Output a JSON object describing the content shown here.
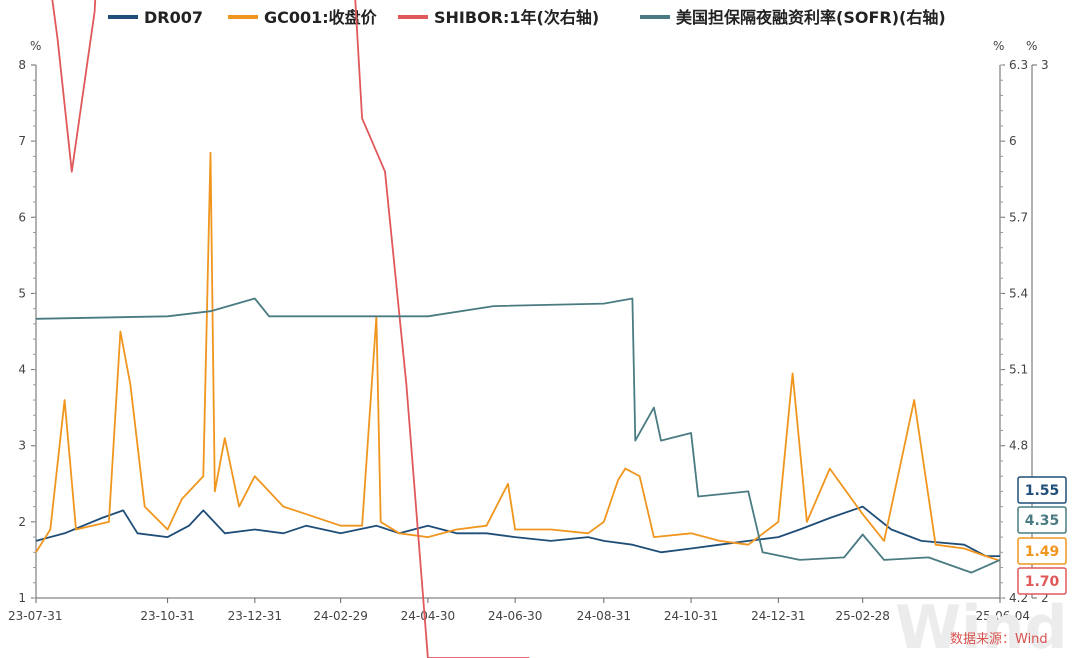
{
  "chart_data": {
    "type": "line",
    "legend": [
      {
        "name": "DR007",
        "color": "#1f4e79"
      },
      {
        "name": "GC001:收盘价",
        "color": "#f0961e"
      },
      {
        "name": "SHIBOR:1年(次右轴)",
        "color": "#e0585a"
      },
      {
        "name": "美国担保隔夜融资利率(SOFR)(右轴)",
        "color": "#4a7b82"
      }
    ],
    "x_ticks": [
      "23-07-31",
      "23-10-31",
      "23-12-31",
      "24-02-29",
      "24-04-30",
      "24-06-30",
      "24-08-31",
      "24-10-31",
      "24-12-31",
      "25-02-28",
      "25-06-04"
    ],
    "x_range": [
      "2023-07-31",
      "2025-06-04"
    ],
    "left_axis": {
      "unit": "%",
      "ylim": [
        1,
        8
      ],
      "ticks": [
        "1",
        "2",
        "3",
        "4",
        "5",
        "6",
        "7",
        "8"
      ]
    },
    "right_axis": {
      "unit": "%",
      "ylim": [
        4.2,
        6.3
      ],
      "ticks": [
        "4.2",
        "4.8",
        "5.1",
        "5.4",
        "5.7",
        "6",
        "6.3"
      ]
    },
    "right_axis2": {
      "unit": "%",
      "ylim": [
        2,
        3
      ],
      "ticks": [
        "2",
        "3"
      ]
    },
    "series": [
      {
        "name": "DR007",
        "color": "#1f4e79",
        "axis": "left",
        "points": [
          [
            "2023-07-31",
            1.75
          ],
          [
            "2023-08-20",
            1.85
          ],
          [
            "2023-09-15",
            2.05
          ],
          [
            "2023-09-30",
            2.15
          ],
          [
            "2023-10-10",
            1.85
          ],
          [
            "2023-10-31",
            1.8
          ],
          [
            "2023-11-15",
            1.95
          ],
          [
            "2023-11-25",
            2.15
          ],
          [
            "2023-12-10",
            1.85
          ],
          [
            "2023-12-31",
            1.9
          ],
          [
            "2024-01-20",
            1.85
          ],
          [
            "2024-02-05",
            1.95
          ],
          [
            "2024-02-29",
            1.85
          ],
          [
            "2024-03-25",
            1.95
          ],
          [
            "2024-04-10",
            1.85
          ],
          [
            "2024-04-30",
            1.95
          ],
          [
            "2024-05-20",
            1.85
          ],
          [
            "2024-06-10",
            1.85
          ],
          [
            "2024-06-30",
            1.8
          ],
          [
            "2024-07-25",
            1.75
          ],
          [
            "2024-08-20",
            1.8
          ],
          [
            "2024-08-31",
            1.75
          ],
          [
            "2024-09-20",
            1.7
          ],
          [
            "2024-10-10",
            1.6
          ],
          [
            "2024-10-31",
            1.65
          ],
          [
            "2024-11-20",
            1.7
          ],
          [
            "2024-12-10",
            1.75
          ],
          [
            "2024-12-31",
            1.8
          ],
          [
            "2025-01-15",
            1.9
          ],
          [
            "2025-02-05",
            2.05
          ],
          [
            "2025-02-28",
            2.2
          ],
          [
            "2025-03-20",
            1.9
          ],
          [
            "2025-04-10",
            1.75
          ],
          [
            "2025-05-10",
            1.7
          ],
          [
            "2025-05-25",
            1.55
          ],
          [
            "2025-06-04",
            1.55
          ]
        ]
      },
      {
        "name": "GC001:收盘价",
        "color": "#f0961e",
        "axis": "left",
        "points": [
          [
            "2023-07-31",
            1.6
          ],
          [
            "2023-08-10",
            1.9
          ],
          [
            "2023-08-20",
            3.6
          ],
          [
            "2023-08-28",
            1.9
          ],
          [
            "2023-09-20",
            2.0
          ],
          [
            "2023-09-28",
            4.5
          ],
          [
            "2023-10-05",
            3.8
          ],
          [
            "2023-10-15",
            2.2
          ],
          [
            "2023-10-31",
            1.9
          ],
          [
            "2023-11-10",
            2.3
          ],
          [
            "2023-11-25",
            2.6
          ],
          [
            "2023-11-30",
            6.85
          ],
          [
            "2023-12-03",
            2.4
          ],
          [
            "2023-12-10",
            3.1
          ],
          [
            "2023-12-20",
            2.2
          ],
          [
            "2023-12-31",
            2.6
          ],
          [
            "2024-01-20",
            2.2
          ],
          [
            "2024-02-05",
            2.1
          ],
          [
            "2024-02-29",
            1.95
          ],
          [
            "2024-03-15",
            1.95
          ],
          [
            "2024-03-25",
            4.7
          ],
          [
            "2024-03-28",
            2.0
          ],
          [
            "2024-04-10",
            1.85
          ],
          [
            "2024-04-30",
            1.8
          ],
          [
            "2024-05-20",
            1.9
          ],
          [
            "2024-06-10",
            1.95
          ],
          [
            "2024-06-25",
            2.5
          ],
          [
            "2024-06-30",
            1.9
          ],
          [
            "2024-07-25",
            1.9
          ],
          [
            "2024-08-20",
            1.85
          ],
          [
            "2024-08-31",
            2.0
          ],
          [
            "2024-09-10",
            2.55
          ],
          [
            "2024-09-15",
            2.7
          ],
          [
            "2024-09-25",
            2.6
          ],
          [
            "2024-10-05",
            1.8
          ],
          [
            "2024-10-31",
            1.85
          ],
          [
            "2024-11-20",
            1.75
          ],
          [
            "2024-12-10",
            1.7
          ],
          [
            "2024-12-31",
            2.0
          ],
          [
            "2025-01-10",
            3.95
          ],
          [
            "2025-01-20",
            2.0
          ],
          [
            "2025-02-05",
            2.7
          ],
          [
            "2025-02-28",
            2.1
          ],
          [
            "2025-03-15",
            1.75
          ],
          [
            "2025-04-05",
            3.6
          ],
          [
            "2025-04-20",
            1.7
          ],
          [
            "2025-05-10",
            1.65
          ],
          [
            "2025-05-25",
            1.55
          ],
          [
            "2025-06-04",
            1.49
          ]
        ]
      },
      {
        "name": "SHIBOR:1年(次右轴)",
        "color": "#e0585a",
        "axis": "right2",
        "points": [
          [
            "2023-07-31",
            3.35
          ],
          [
            "2023-08-15",
            3.05
          ],
          [
            "2023-08-25",
            2.8
          ],
          [
            "2023-09-10",
            3.1
          ],
          [
            "2023-09-28",
            4.0
          ],
          [
            "2023-10-10",
            4.2
          ],
          [
            "2023-10-31",
            4.6
          ],
          [
            "2023-11-15",
            4.9
          ],
          [
            "2023-11-30",
            4.95
          ],
          [
            "2023-12-05",
            5.5
          ],
          [
            "2023-12-15",
            5.5
          ],
          [
            "2023-12-31",
            4.4
          ],
          [
            "2024-01-15",
            4.25
          ],
          [
            "2024-01-31",
            4.25
          ],
          [
            "2024-02-29",
            3.6
          ],
          [
            "2024-03-15",
            2.9
          ],
          [
            "2024-03-31",
            2.8
          ],
          [
            "2024-04-15",
            2.4
          ],
          [
            "2024-04-30",
            1.55
          ],
          [
            "2024-05-15",
            1.4
          ],
          [
            "2024-06-10",
            1.2
          ],
          [
            "2024-06-30",
            1.0
          ],
          [
            "2024-07-10",
            0.9
          ]
        ]
      },
      {
        "name": "美国担保隔夜融资利率(SOFR)(右轴)",
        "color": "#4a7b82",
        "axis": "right",
        "points": [
          [
            "2023-07-31",
            5.3
          ],
          [
            "2023-10-31",
            5.31
          ],
          [
            "2023-11-30",
            5.33
          ],
          [
            "2023-12-31",
            5.38
          ],
          [
            "2024-01-10",
            5.31
          ],
          [
            "2024-04-30",
            5.31
          ],
          [
            "2024-06-15",
            5.35
          ],
          [
            "2024-08-31",
            5.36
          ],
          [
            "2024-09-20",
            5.38
          ],
          [
            "2024-09-22",
            4.82
          ],
          [
            "2024-10-05",
            4.95
          ],
          [
            "2024-10-10",
            4.82
          ],
          [
            "2024-10-31",
            4.85
          ],
          [
            "2024-11-05",
            4.6
          ],
          [
            "2024-12-10",
            4.62
          ],
          [
            "2024-12-20",
            4.38
          ],
          [
            "2025-01-15",
            4.35
          ],
          [
            "2025-02-15",
            4.36
          ],
          [
            "2025-02-28",
            4.45
          ],
          [
            "2025-03-15",
            4.35
          ],
          [
            "2025-04-15",
            4.36
          ],
          [
            "2025-05-15",
            4.3
          ],
          [
            "2025-06-04",
            4.35
          ]
        ]
      }
    ],
    "end_labels": [
      {
        "name": "DR007",
        "value": "1.55",
        "color": "#1f4e79"
      },
      {
        "name": "美国担保隔夜融资利率(SOFR)(右轴)",
        "value": "4.35",
        "color": "#4a7b82"
      },
      {
        "name": "GC001:收盘价",
        "value": "1.49",
        "color": "#f0961e"
      },
      {
        "name": "SHIBOR:1年(次右轴)",
        "value": "1.70",
        "color": "#e0585a"
      }
    ],
    "source": "数据来源：Wind",
    "watermark": "Wind"
  }
}
